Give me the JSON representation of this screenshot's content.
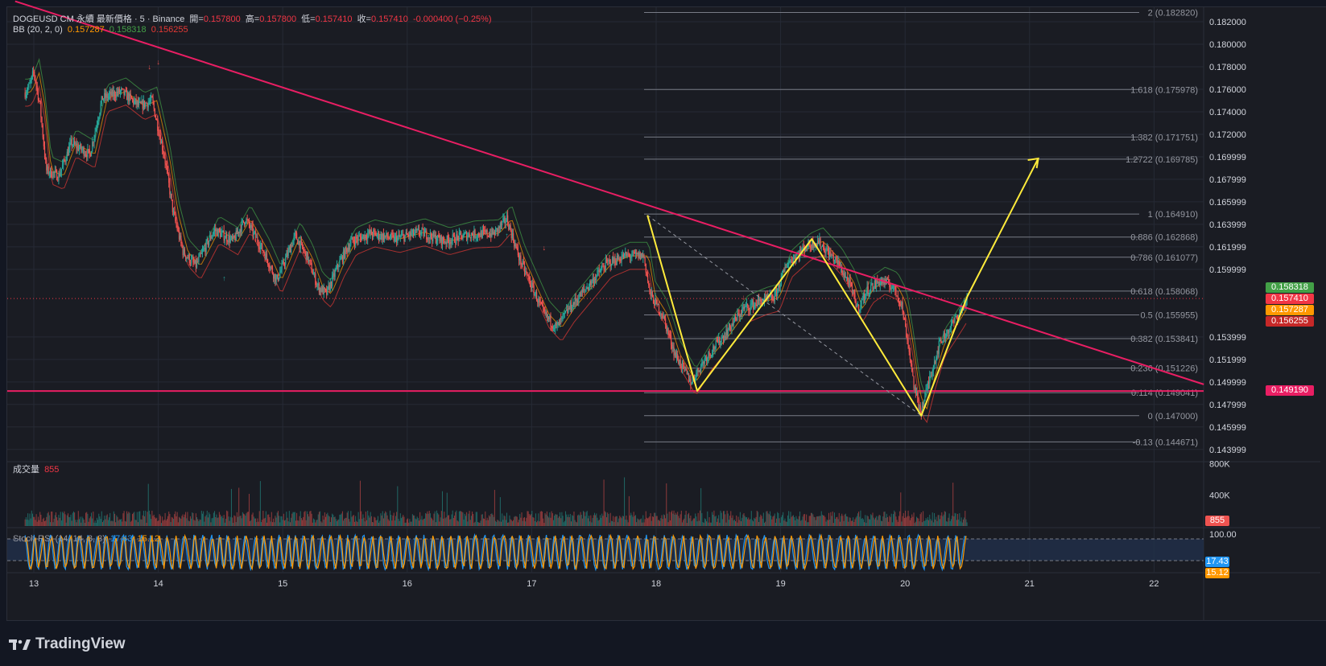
{
  "header": {
    "symbol": "DOGEUSD CM 永續 最新價格 · 5 · Binance",
    "open_label": "開=",
    "open": "0.157800",
    "high_label": "高=",
    "high": "0.157800",
    "low_label": "低=",
    "low": "0.157410",
    "close_label": "收=",
    "close": "0.157410",
    "change": "-0.000400 (−0.25%)"
  },
  "bb": {
    "label": "BB (20, 2, 0)",
    "basis": "0.157287",
    "upper": "0.158318",
    "lower": "0.156255"
  },
  "volume_legend": {
    "label": "成交量",
    "value": "855"
  },
  "stoch_legend": {
    "label": "Stoch RSI (14, 14, 3, 3)",
    "k": "17.43",
    "d": "15.12"
  },
  "brand": {
    "name": "TradingView"
  },
  "colors": {
    "up": "#26a69a",
    "down": "#ef5350",
    "trendline": "#e91e63",
    "pattern": "#ffeb3b",
    "bb_basis": "#ff9800",
    "bb_upper": "#43a047",
    "bb_lower": "#e53935",
    "stoch_k": "#2196f3",
    "stoch_d": "#ff9800"
  },
  "chart_data": {
    "type": "candlestick",
    "x_ticks": [
      "13",
      "14",
      "15",
      "16",
      "17",
      "18",
      "19",
      "20",
      "21",
      "22"
    ],
    "price_axis_ticks": [
      "0.182000",
      "0.180000",
      "0.178000",
      "0.176000",
      "0.174000",
      "0.172000",
      "0.169999",
      "0.167999",
      "0.165999",
      "0.163999",
      "0.161999",
      "0.159999",
      "0.153999",
      "0.151999",
      "0.149999",
      "0.147999",
      "0.145999",
      "0.143999"
    ],
    "price_range": [
      0.1425,
      0.1831
    ],
    "price_tags": [
      {
        "label": "0.158318",
        "value": 0.158318,
        "color": "#43a047"
      },
      {
        "label": "0.157410",
        "value": 0.15741,
        "color": "#f23645"
      },
      {
        "label": "0.157287",
        "value": 0.157287,
        "color": "#ff9800"
      },
      {
        "label": "0.156255",
        "value": 0.156255,
        "color": "#c62828"
      },
      {
        "label": "0.149190",
        "value": 0.14919,
        "color": "#e91e63"
      }
    ],
    "fib_levels": [
      {
        "label": "2 (0.182820)",
        "value": 0.18282
      },
      {
        "label": "1.618 (0.175978)",
        "value": 0.175978
      },
      {
        "label": "1.382 (0.171751)",
        "value": 0.171751
      },
      {
        "label": "1.2722 (0.169785)",
        "value": 0.169785
      },
      {
        "label": "1 (0.164910)",
        "value": 0.16491
      },
      {
        "label": "0.886 (0.162868)",
        "value": 0.162868
      },
      {
        "label": "0.786 (0.161077)",
        "value": 0.161077
      },
      {
        "label": "0.618 (0.158068)",
        "value": 0.158068
      },
      {
        "label": "0.5 (0.155955)",
        "value": 0.155955
      },
      {
        "label": "0.382 (0.153841)",
        "value": 0.153841
      },
      {
        "label": "0.236 (0.151226)",
        "value": 0.151226
      },
      {
        "label": "0.114 (0.149041)",
        "value": 0.149041
      },
      {
        "label": "0 (0.147000)",
        "value": 0.147
      },
      {
        "label": "-0.13 (0.144671)",
        "value": 0.144671
      }
    ],
    "support_level": 0.14919,
    "descending_trendline": [
      {
        "day": 12.85,
        "price": 0.18382
      },
      {
        "day": 22.4,
        "price": 0.14978
      }
    ],
    "pattern_points": [
      {
        "day": 17.93,
        "price": 0.1648
      },
      {
        "day": 18.33,
        "price": 0.1492
      },
      {
        "day": 19.25,
        "price": 0.1627
      },
      {
        "day": 20.13,
        "price": 0.147
      },
      {
        "day": 20.5,
        "price": 0.1576
      },
      {
        "day": 21.07,
        "price": 0.16985
      }
    ],
    "price_path": [
      [
        12.93,
        0.1757
      ],
      [
        12.97,
        0.1764
      ],
      [
        13.0,
        0.1776
      ],
      [
        13.05,
        0.1745
      ],
      [
        13.1,
        0.1688
      ],
      [
        13.2,
        0.1683
      ],
      [
        13.3,
        0.1712
      ],
      [
        13.45,
        0.1702
      ],
      [
        13.55,
        0.1752
      ],
      [
        13.7,
        0.1758
      ],
      [
        13.85,
        0.1745
      ],
      [
        13.95,
        0.175
      ],
      [
        14.05,
        0.17
      ],
      [
        14.12,
        0.165
      ],
      [
        14.2,
        0.1615
      ],
      [
        14.3,
        0.1603
      ],
      [
        14.45,
        0.1635
      ],
      [
        14.6,
        0.1625
      ],
      [
        14.7,
        0.1645
      ],
      [
        14.85,
        0.1615
      ],
      [
        14.95,
        0.159
      ],
      [
        15.1,
        0.163
      ],
      [
        15.2,
        0.161
      ],
      [
        15.28,
        0.1585
      ],
      [
        15.35,
        0.1578
      ],
      [
        15.45,
        0.1605
      ],
      [
        15.55,
        0.1625
      ],
      [
        15.7,
        0.1632
      ],
      [
        15.9,
        0.1627
      ],
      [
        16.1,
        0.1633
      ],
      [
        16.3,
        0.1625
      ],
      [
        16.5,
        0.1631
      ],
      [
        16.7,
        0.1632
      ],
      [
        16.8,
        0.1645
      ],
      [
        16.9,
        0.161
      ],
      [
        17.0,
        0.1585
      ],
      [
        17.1,
        0.156
      ],
      [
        17.2,
        0.1548
      ],
      [
        17.3,
        0.1565
      ],
      [
        17.45,
        0.1585
      ],
      [
        17.6,
        0.1605
      ],
      [
        17.75,
        0.1612
      ],
      [
        17.9,
        0.1612
      ],
      [
        17.95,
        0.1578
      ],
      [
        18.05,
        0.156
      ],
      [
        18.15,
        0.1525
      ],
      [
        18.28,
        0.15
      ],
      [
        18.4,
        0.1522
      ],
      [
        18.55,
        0.1542
      ],
      [
        18.7,
        0.1565
      ],
      [
        18.85,
        0.1572
      ],
      [
        18.95,
        0.1575
      ],
      [
        19.05,
        0.1605
      ],
      [
        19.2,
        0.162
      ],
      [
        19.3,
        0.1625
      ],
      [
        19.45,
        0.1607
      ],
      [
        19.55,
        0.1588
      ],
      [
        19.62,
        0.1565
      ],
      [
        19.7,
        0.1582
      ],
      [
        19.8,
        0.159
      ],
      [
        19.9,
        0.1585
      ],
      [
        19.97,
        0.157
      ],
      [
        20.03,
        0.153
      ],
      [
        20.08,
        0.149
      ],
      [
        20.13,
        0.1474
      ],
      [
        20.2,
        0.1505
      ],
      [
        20.28,
        0.1535
      ],
      [
        20.36,
        0.1548
      ],
      [
        20.44,
        0.1562
      ],
      [
        20.5,
        0.1574
      ]
    ],
    "volume_axis_ticks": [
      "800K",
      "400K"
    ],
    "volume_last": "855",
    "stoch_axis_ticks": [
      "100.00"
    ],
    "stoch_last_k": "17.43",
    "stoch_last_d": "15.12"
  }
}
